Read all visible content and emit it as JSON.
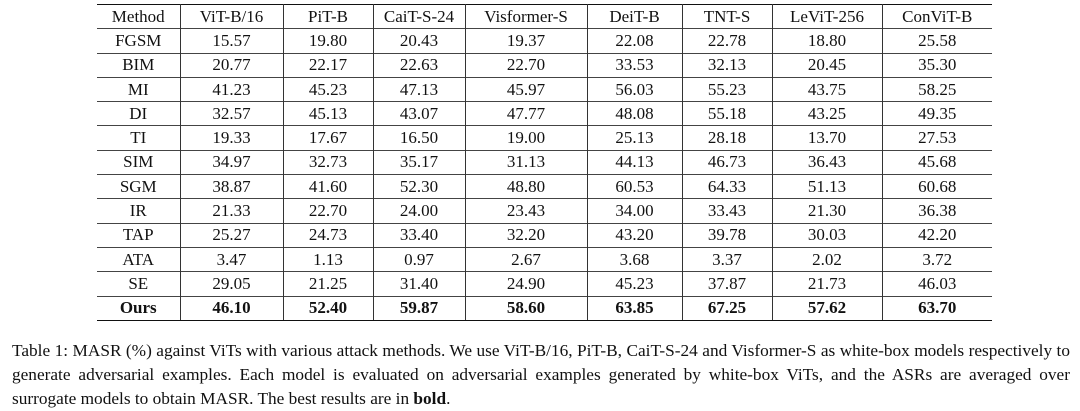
{
  "table": {
    "columns": [
      "Method",
      "ViT-B/16",
      "PiT-B",
      "CaiT-S-24",
      "Visformer-S",
      "DeiT-B",
      "TNT-S",
      "LeViT-256",
      "ConViT-B"
    ],
    "rows": [
      {
        "label": "FGSM",
        "cells": [
          "15.57",
          "19.80",
          "20.43",
          "19.37",
          "22.08",
          "22.78",
          "18.80",
          "25.58"
        ]
      },
      {
        "label": "BIM",
        "cells": [
          "20.77",
          "22.17",
          "22.63",
          "22.70",
          "33.53",
          "32.13",
          "20.45",
          "35.30"
        ]
      },
      {
        "label": "MI",
        "cells": [
          "41.23",
          "45.23",
          "47.13",
          "45.97",
          "56.03",
          "55.23",
          "43.75",
          "58.25"
        ]
      },
      {
        "label": "DI",
        "cells": [
          "32.57",
          "45.13",
          "43.07",
          "47.77",
          "48.08",
          "55.18",
          "43.25",
          "49.35"
        ]
      },
      {
        "label": "TI",
        "cells": [
          "19.33",
          "17.67",
          "16.50",
          "19.00",
          "25.13",
          "28.18",
          "13.70",
          "27.53"
        ]
      },
      {
        "label": "SIM",
        "cells": [
          "34.97",
          "32.73",
          "35.17",
          "31.13",
          "44.13",
          "46.73",
          "36.43",
          "45.68"
        ]
      },
      {
        "label": "SGM",
        "cells": [
          "38.87",
          "41.60",
          "52.30",
          "48.80",
          "60.53",
          "64.33",
          "51.13",
          "60.68"
        ]
      },
      {
        "label": "IR",
        "cells": [
          "21.33",
          "22.70",
          "24.00",
          "23.43",
          "34.00",
          "33.43",
          "21.30",
          "36.38"
        ]
      },
      {
        "label": "TAP",
        "cells": [
          "25.27",
          "24.73",
          "33.40",
          "32.20",
          "43.20",
          "39.78",
          "30.03",
          "42.20"
        ]
      },
      {
        "label": "ATA",
        "cells": [
          "3.47",
          "1.13",
          "0.97",
          "2.67",
          "3.68",
          "3.37",
          "2.02",
          "3.72"
        ]
      },
      {
        "label": "SE",
        "cells": [
          "29.05",
          "21.25",
          "31.40",
          "24.90",
          "45.23",
          "37.87",
          "21.73",
          "46.03"
        ]
      },
      {
        "label": "Ours",
        "cells": [
          "46.10",
          "52.40",
          "59.87",
          "58.60",
          "63.85",
          "67.25",
          "57.62",
          "63.70"
        ]
      }
    ]
  },
  "caption": {
    "text": "Table 1: MASR (%) against ViTs with various attack methods. We use ViT-B/16, PiT-B, CaiT-S-24 and Visformer-S as white-box models respectively to generate adversarial examples. Each model is evaluated on adversarial examples generated by white-box ViTs, and the ASRs are averaged over surrogate models to obtain MASR. The best results are in",
    "bold": "bold",
    "end": "."
  }
}
